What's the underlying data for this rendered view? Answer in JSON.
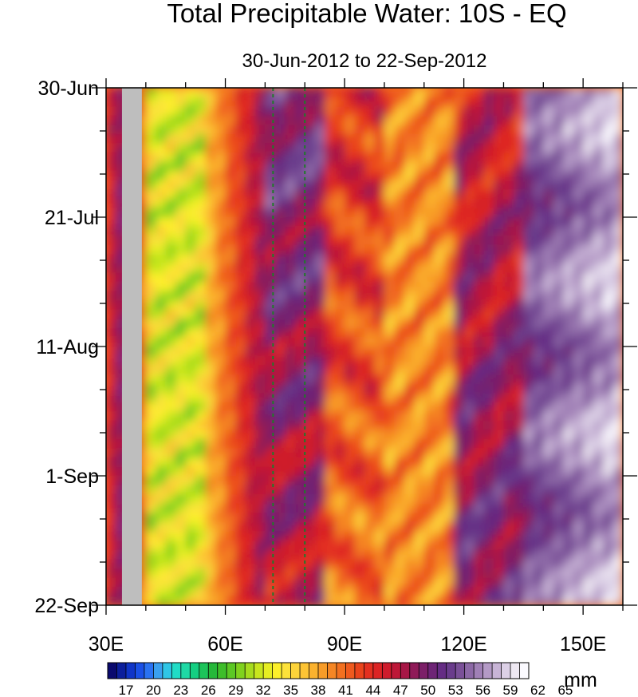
{
  "chart_data": {
    "type": "heatmap",
    "title": "Total Precipitable Water: 10S - EQ",
    "subtitle": "30-Jun-2012 to 22-Sep-2012",
    "x": {
      "label": "",
      "range": [
        30,
        160
      ],
      "ticks": [
        {
          "value": 30,
          "label": "30E"
        },
        {
          "value": 60,
          "label": "60E"
        },
        {
          "value": 90,
          "label": "90E"
        },
        {
          "value": 120,
          "label": "120E"
        },
        {
          "value": 150,
          "label": "150E"
        }
      ],
      "minor_step": 10
    },
    "y": {
      "label": "",
      "range": [
        "2012-06-30",
        "2012-09-22"
      ],
      "ticks": [
        {
          "value": "2012-06-30",
          "label": "30-Jun"
        },
        {
          "value": "2012-07-21",
          "label": "21-Jul"
        },
        {
          "value": "2012-08-11",
          "label": "11-Aug"
        },
        {
          "value": "2012-09-01",
          "label": "1-Sep"
        },
        {
          "value": "2012-09-22",
          "label": "22-Sep"
        }
      ],
      "minor_step_days": 7,
      "direction": "top-to-bottom"
    },
    "reference_lines": [
      {
        "orientation": "vertical",
        "x": 72,
        "style": "dashed",
        "color": "#1f7a2a"
      },
      {
        "orientation": "vertical",
        "x": 80,
        "style": "dashed",
        "color": "#1f7a2a"
      }
    ],
    "missing_region": {
      "x": [
        34,
        39
      ],
      "color": "#bebebe"
    },
    "colorbar": {
      "unit": "mm",
      "orientation": "horizontal",
      "min": 15.5,
      "max": 65.5,
      "step": 1,
      "labels": [
        17,
        20,
        23,
        26,
        29,
        32,
        35,
        38,
        41,
        44,
        47,
        50,
        53,
        56,
        59,
        62,
        65
      ],
      "colors": [
        "#0a0a6e",
        "#0c1f9c",
        "#1035c8",
        "#1a50e6",
        "#2a72f2",
        "#3aa0ef",
        "#2fc6e6",
        "#21dcc6",
        "#1ed9a5",
        "#14cf82",
        "#1cc45a",
        "#25b83a",
        "#3ebe2a",
        "#5cc824",
        "#80d21e",
        "#a6dc1e",
        "#c8e61e",
        "#e6ee22",
        "#fdf02a",
        "#fde23a",
        "#fdd43a",
        "#fdc434",
        "#fbb22e",
        "#f89c28",
        "#f58624",
        "#f27020",
        "#ef5a1e",
        "#ea441c",
        "#e43020",
        "#dc2424",
        "#cf1c2c",
        "#bd1838",
        "#a71646",
        "#8f1a58",
        "#7c1f68",
        "#6e2476",
        "#652c84",
        "#6a3c8c",
        "#7a5098",
        "#8c68a6",
        "#a080b6",
        "#b49ac6",
        "#c8b4d6",
        "#dcd0e6",
        "#eee8f2",
        "#fbfaff"
      ]
    }
  }
}
